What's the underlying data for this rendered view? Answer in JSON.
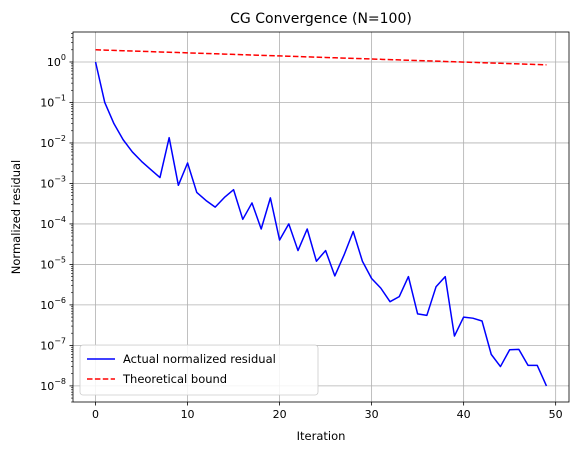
{
  "chart_data": {
    "type": "line",
    "title": "CG Convergence (N=100)",
    "xlabel": "Iteration",
    "ylabel": "Normalized residual",
    "yscale": "log",
    "xlim": [
      -2.45,
      51.45
    ],
    "ylim": [
      4e-09,
      5.5
    ],
    "xticks": [
      0,
      10,
      20,
      30,
      40,
      50
    ],
    "yticks": [
      {
        "value": 1e-08,
        "base": "10",
        "exp": "−8"
      },
      {
        "value": 1e-07,
        "base": "10",
        "exp": "−7"
      },
      {
        "value": 1e-06,
        "base": "10",
        "exp": "−6"
      },
      {
        "value": 1e-05,
        "base": "10",
        "exp": "−5"
      },
      {
        "value": 0.0001,
        "base": "10",
        "exp": "−4"
      },
      {
        "value": 0.001,
        "base": "10",
        "exp": "−3"
      },
      {
        "value": 0.01,
        "base": "10",
        "exp": "−2"
      },
      {
        "value": 0.1,
        "base": "10",
        "exp": "−1"
      },
      {
        "value": 1,
        "base": "10",
        "exp": "0"
      }
    ],
    "grid": true,
    "legend_position": "lower-left",
    "series": [
      {
        "name": "Actual normalized residual",
        "color": "#0000ff",
        "style": "solid",
        "x": [
          0,
          1,
          2,
          3,
          4,
          5,
          6,
          7,
          8,
          9,
          10,
          11,
          12,
          13,
          14,
          15,
          16,
          17,
          18,
          19,
          20,
          21,
          22,
          23,
          24,
          25,
          26,
          27,
          28,
          29,
          30,
          31,
          32,
          33,
          34,
          35,
          36,
          37,
          38,
          39,
          40,
          41,
          42,
          43,
          44,
          45,
          46,
          47,
          48,
          49
        ],
        "y": [
          1.0,
          0.1,
          0.03,
          0.012,
          0.006,
          0.0035,
          0.0022,
          0.0014,
          0.0135,
          0.0009,
          0.0032,
          0.0006,
          0.00038,
          0.00026,
          0.00045,
          0.0007,
          0.00013,
          0.00033,
          7.5e-05,
          0.00044,
          4e-05,
          0.0001,
          2.2e-05,
          7.5e-05,
          1.2e-05,
          2.2e-05,
          5.2e-06,
          1.7e-05,
          6.5e-05,
          1.2e-05,
          4.5e-06,
          2.6e-06,
          1.2e-06,
          1.6e-06,
          5e-06,
          6e-07,
          5.5e-07,
          2.8e-06,
          5e-06,
          1.7e-07,
          5e-07,
          4.7e-07,
          4e-07,
          6e-08,
          3e-08,
          7.8e-08,
          8e-08,
          3.2e-08,
          3.2e-08,
          1e-08
        ]
      },
      {
        "name": "Theoretical bound",
        "color": "#ff0000",
        "style": "dashed",
        "x": [
          0,
          1,
          2,
          3,
          4,
          5,
          6,
          7,
          8,
          9,
          10,
          11,
          12,
          13,
          14,
          15,
          16,
          17,
          18,
          19,
          20,
          21,
          22,
          23,
          24,
          25,
          26,
          27,
          28,
          29,
          30,
          31,
          32,
          33,
          34,
          35,
          36,
          37,
          38,
          39,
          40,
          41,
          42,
          43,
          44,
          45,
          46,
          47,
          48,
          49
        ],
        "y": [
          2.0,
          1.9654,
          1.9314,
          1.898,
          1.8651,
          1.8328,
          1.8011,
          1.7699,
          1.7393,
          1.7092,
          1.6796,
          1.6505,
          1.6219,
          1.5939,
          1.5663,
          1.5392,
          1.5125,
          1.4863,
          1.4606,
          1.4353,
          1.4105,
          1.3861,
          1.3621,
          1.3385,
          1.3153,
          1.2926,
          1.2702,
          1.2482,
          1.2266,
          1.2054,
          1.1845,
          1.164,
          1.1439,
          1.1241,
          1.1046,
          1.0855,
          1.0667,
          1.0482,
          1.0301,
          1.0123,
          0.9947,
          0.9775,
          0.9606,
          0.944,
          0.9277,
          0.9116,
          0.8958,
          0.8803,
          0.8651,
          0.8501
        ]
      }
    ]
  }
}
